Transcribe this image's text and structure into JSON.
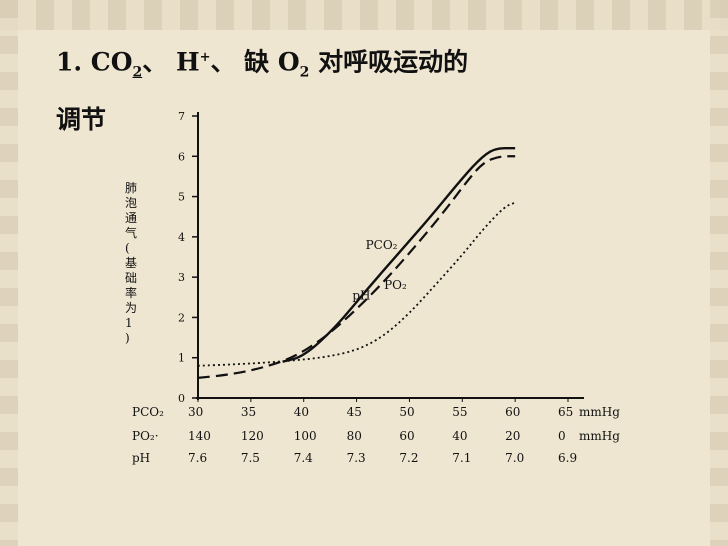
{
  "title": {
    "prefix": "1. CO",
    "co2_sub": "2",
    "sep1": "、 H",
    "h_sup": "+",
    "sep2": "、  缺 O",
    "o2_sub": "2",
    "suffix": " 对呼吸运动的",
    "line2": "调节"
  },
  "chart_data": {
    "type": "line",
    "ylabel": "肺泡通气(基础率为1)",
    "ylim": [
      0,
      7
    ],
    "yticks": [
      "0",
      "1",
      "2",
      "3",
      "4",
      "5",
      "6",
      "7"
    ],
    "x_axes": [
      {
        "name": "PCO₂",
        "ticks": [
          "30",
          "35",
          "40",
          "45",
          "50",
          "55",
          "60",
          "65"
        ],
        "unit": "mmHg"
      },
      {
        "name": "PO₂·",
        "ticks": [
          "140",
          "120",
          "100",
          "80",
          "60",
          "40",
          "20",
          "0"
        ],
        "unit": "mmHg"
      },
      {
        "name": "pH",
        "ticks": [
          "7.6",
          "7.5",
          "7.4",
          "7.3",
          "7.2",
          "7.1",
          "7.0",
          "6.9"
        ],
        "unit": ""
      }
    ],
    "x_index": [
      0,
      1,
      2,
      3,
      4,
      5,
      6,
      7
    ],
    "series": [
      {
        "name": "PCO₂",
        "style": "solid",
        "points": [
          [
            1.6,
            0.9
          ],
          [
            2,
            1.03
          ],
          [
            2.6,
            1.75
          ],
          [
            3.2,
            2.7
          ],
          [
            3.8,
            3.6
          ],
          [
            4.4,
            4.5
          ],
          [
            4.9,
            5.3
          ],
          [
            5.3,
            5.9
          ],
          [
            5.6,
            6.2
          ],
          [
            6,
            6.2
          ]
        ]
      },
      {
        "name": "pH",
        "style": "dashed",
        "points": [
          [
            0,
            0.5
          ],
          [
            0.6,
            0.58
          ],
          [
            1.2,
            0.74
          ],
          [
            1.8,
            1.0
          ],
          [
            2.4,
            1.5
          ],
          [
            3.0,
            2.2
          ],
          [
            3.6,
            3.0
          ],
          [
            4.2,
            3.9
          ],
          [
            4.7,
            4.7
          ],
          [
            5.1,
            5.4
          ],
          [
            5.4,
            5.85
          ],
          [
            5.7,
            6.0
          ],
          [
            6,
            6.0
          ]
        ]
      },
      {
        "name": "PO₂",
        "style": "dotted",
        "points": [
          [
            0,
            0.8
          ],
          [
            0.6,
            0.83
          ],
          [
            1.2,
            0.87
          ],
          [
            1.8,
            0.93
          ],
          [
            2.4,
            1.01
          ],
          [
            3.0,
            1.18
          ],
          [
            3.5,
            1.52
          ],
          [
            4.0,
            2.1
          ],
          [
            4.5,
            2.82
          ],
          [
            5.0,
            3.55
          ],
          [
            5.4,
            4.2
          ],
          [
            5.8,
            4.75
          ],
          [
            6.0,
            4.85
          ]
        ]
      }
    ],
    "annotations": [
      {
        "text": "PCO₂",
        "x": 3.7,
        "y": 3.7
      },
      {
        "text": "pH",
        "x": 3.45,
        "y": 2.45
      },
      {
        "text": "PO₂",
        "x": 4.05,
        "y": 2.7
      }
    ]
  }
}
